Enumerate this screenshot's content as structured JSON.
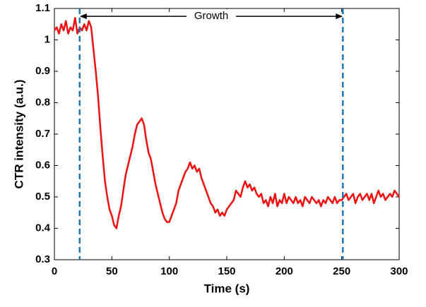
{
  "chart_data": {
    "type": "line",
    "xlabel": "Time (s)",
    "ylabel": "CTR intensity (a.u.)",
    "xlim": [
      0,
      300
    ],
    "xticks": [
      0,
      50,
      100,
      150,
      200,
      250,
      300
    ],
    "ylim": [
      0.3,
      1.1
    ],
    "yticks": [
      0.3,
      0.4,
      0.5,
      0.6,
      0.7,
      0.8,
      0.9,
      1,
      1.1
    ],
    "grid": false,
    "x": [
      0,
      2,
      4,
      6,
      8,
      10,
      12,
      14,
      16,
      18,
      20,
      22,
      24,
      26,
      28,
      30,
      32,
      34,
      36,
      38,
      40,
      42,
      44,
      46,
      48,
      50,
      52,
      54,
      56,
      58,
      60,
      62,
      64,
      66,
      68,
      70,
      72,
      74,
      76,
      78,
      80,
      82,
      84,
      86,
      88,
      90,
      92,
      94,
      96,
      98,
      100,
      102,
      104,
      106,
      108,
      110,
      112,
      114,
      116,
      118,
      120,
      122,
      124,
      126,
      128,
      130,
      132,
      134,
      136,
      138,
      140,
      142,
      144,
      146,
      148,
      150,
      152,
      154,
      156,
      158,
      160,
      162,
      164,
      166,
      168,
      170,
      172,
      174,
      176,
      178,
      180,
      182,
      184,
      186,
      188,
      190,
      192,
      194,
      196,
      198,
      200,
      202,
      204,
      206,
      208,
      210,
      212,
      214,
      216,
      218,
      220,
      222,
      224,
      226,
      228,
      230,
      232,
      234,
      236,
      238,
      240,
      242,
      244,
      246,
      248,
      250,
      252,
      254,
      256,
      258,
      260,
      262,
      264,
      266,
      268,
      270,
      272,
      274,
      276,
      278,
      280,
      282,
      284,
      286,
      288,
      290,
      292,
      294,
      296,
      298,
      300
    ],
    "series": [
      {
        "color": "#ee1111",
        "values": [
          1.03,
          1.04,
          1.02,
          1.05,
          1.03,
          1.06,
          1.02,
          1.04,
          1.03,
          1.07,
          1.02,
          1.04,
          1.03,
          1.05,
          1.03,
          1.06,
          1.04,
          0.97,
          0.9,
          0.82,
          0.72,
          0.63,
          0.55,
          0.5,
          0.46,
          0.44,
          0.41,
          0.4,
          0.44,
          0.47,
          0.52,
          0.57,
          0.6,
          0.63,
          0.66,
          0.7,
          0.73,
          0.74,
          0.75,
          0.73,
          0.68,
          0.64,
          0.62,
          0.58,
          0.54,
          0.51,
          0.48,
          0.45,
          0.43,
          0.42,
          0.42,
          0.44,
          0.46,
          0.48,
          0.52,
          0.54,
          0.56,
          0.58,
          0.59,
          0.61,
          0.59,
          0.6,
          0.58,
          0.59,
          0.56,
          0.54,
          0.52,
          0.5,
          0.48,
          0.47,
          0.45,
          0.46,
          0.44,
          0.45,
          0.44,
          0.46,
          0.47,
          0.48,
          0.49,
          0.52,
          0.51,
          0.5,
          0.53,
          0.55,
          0.53,
          0.54,
          0.52,
          0.53,
          0.51,
          0.5,
          0.51,
          0.48,
          0.49,
          0.47,
          0.5,
          0.48,
          0.51,
          0.47,
          0.49,
          0.48,
          0.51,
          0.48,
          0.5,
          0.49,
          0.48,
          0.5,
          0.48,
          0.49,
          0.47,
          0.5,
          0.49,
          0.48,
          0.5,
          0.49,
          0.48,
          0.49,
          0.47,
          0.49,
          0.48,
          0.5,
          0.49,
          0.48,
          0.5,
          0.48,
          0.49,
          0.49,
          0.5,
          0.51,
          0.49,
          0.5,
          0.51,
          0.48,
          0.5,
          0.51,
          0.49,
          0.5,
          0.51,
          0.49,
          0.51,
          0.48,
          0.5,
          0.52,
          0.5,
          0.51,
          0.49,
          0.5,
          0.51,
          0.5,
          0.52,
          0.51,
          0.5
        ]
      }
    ],
    "vlines": [
      {
        "x": 22,
        "color": "#1f77b4"
      },
      {
        "x": 251,
        "color": "#1f77b4"
      }
    ],
    "annotation": {
      "text": "Growth",
      "x1": 22,
      "x2": 251,
      "y": 1.075
    }
  }
}
